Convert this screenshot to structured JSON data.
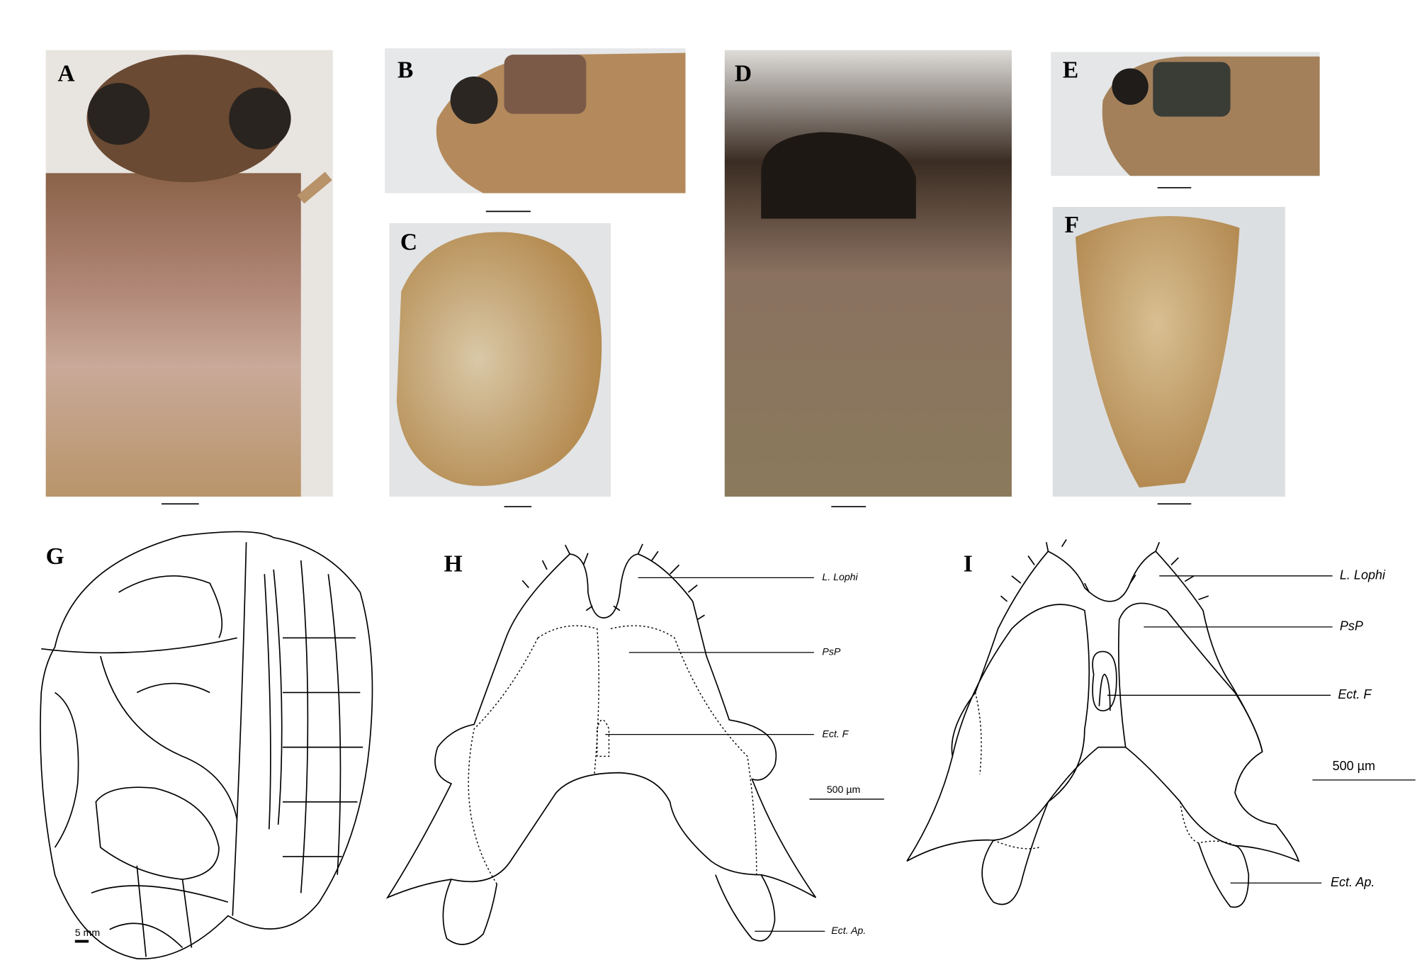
{
  "panel_letters": [
    "A",
    "B",
    "C",
    "D",
    "E",
    "F",
    "G",
    "H",
    "I"
  ],
  "drawings": {
    "G": {
      "scale_label": "5 mm"
    },
    "H": {
      "labels": [
        "L. Lophi",
        "PsP",
        "Ect. F",
        "Ect. Ap."
      ],
      "scale_label": "500 µm"
    },
    "I": {
      "labels": [
        "L. Lophi",
        "PsP",
        "Ect. F",
        "Ect. Ap."
      ],
      "scale_label": "500 µm"
    }
  }
}
